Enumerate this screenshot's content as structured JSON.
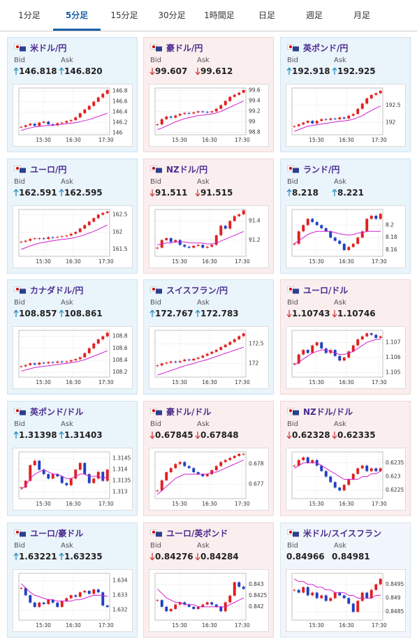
{
  "tabs": [
    "1分足",
    "5分足",
    "15分足",
    "30分足",
    "1時間足",
    "日足",
    "週足",
    "月足"
  ],
  "active_tab": 1,
  "cards": [
    {
      "title": "米ドル/円",
      "trend": "up",
      "bid_label": "Bid",
      "ask_label": "Ask",
      "bid": "146.818",
      "ask": "146.820",
      "chart": {
        "type": "candlestick",
        "xticklabels": [
          "15:30",
          "16:30",
          "17:30"
        ],
        "ylim": [
          145.97,
          146.86
        ],
        "yticks": [
          146,
          146.2,
          146.4,
          146.6,
          146.8
        ],
        "close": [
          146.12,
          146.15,
          146.18,
          146.14,
          146.2,
          146.22,
          146.17,
          146.15,
          146.19,
          146.2,
          146.23,
          146.25,
          146.3,
          146.38,
          146.45,
          146.52,
          146.6,
          146.68,
          146.75,
          146.82
        ],
        "ma": [
          146.05,
          146.08,
          146.1,
          146.12,
          146.13,
          146.14,
          146.15,
          146.15,
          146.16,
          146.17,
          146.18,
          146.19,
          146.2,
          146.22,
          146.24,
          146.26,
          146.29,
          146.32,
          146.35,
          146.38
        ]
      }
    },
    {
      "title": "豪ドル/円",
      "trend": "down",
      "bid_label": "Bid",
      "ask_label": "Ask",
      "bid": "99.607",
      "ask": "99.612",
      "chart": {
        "type": "candlestick",
        "xticklabels": [
          "15:30",
          "16:30",
          "17:30"
        ],
        "ylim": [
          98.75,
          99.65
        ],
        "yticks": [
          98.8,
          99,
          99.2,
          99.4,
          99.6
        ],
        "close": [
          98.95,
          99.05,
          99.1,
          99.08,
          99.12,
          99.15,
          99.17,
          99.16,
          99.18,
          99.2,
          99.19,
          99.18,
          99.2,
          99.25,
          99.32,
          99.4,
          99.48,
          99.52,
          99.56,
          99.61
        ],
        "ma": [
          98.85,
          98.88,
          98.92,
          98.96,
          99.0,
          99.03,
          99.06,
          99.08,
          99.1,
          99.12,
          99.13,
          99.14,
          99.15,
          99.17,
          99.2,
          99.24,
          99.28,
          99.32,
          99.36,
          99.4
        ]
      }
    },
    {
      "title": "英ポンド/円",
      "trend": "up",
      "bid_label": "Bid",
      "ask_label": "Ask",
      "bid": "192.918",
      "ask": "192.925",
      "chart": {
        "type": "candlestick",
        "xticklabels": [
          "15:30",
          "16:30",
          "17:30"
        ],
        "ylim": [
          191.65,
          193.0
        ],
        "yticks": [
          192,
          192.5
        ],
        "close": [
          191.9,
          191.95,
          192.0,
          192.05,
          191.98,
          192.05,
          192.1,
          192.08,
          192.12,
          192.1,
          192.15,
          192.12,
          192.2,
          192.25,
          192.4,
          192.55,
          192.7,
          192.8,
          192.85,
          192.92
        ],
        "ma": [
          191.75,
          191.8,
          191.85,
          191.9,
          191.92,
          191.94,
          191.96,
          191.98,
          192.0,
          192.02,
          192.04,
          192.05,
          192.07,
          192.1,
          192.15,
          192.2,
          192.28,
          192.35,
          192.42,
          192.48
        ]
      }
    },
    {
      "title": "ユーロ/円",
      "trend": "up",
      "bid_label": "Bid",
      "ask_label": "Ask",
      "bid": "162.591",
      "ask": "162.595",
      "chart": {
        "type": "candlestick",
        "xticklabels": [
          "15:30",
          "16:30",
          "17:30"
        ],
        "ylim": [
          161.3,
          162.65
        ],
        "yticks": [
          161.5,
          162,
          162.5
        ],
        "close": [
          161.72,
          161.75,
          161.8,
          161.82,
          161.82,
          161.8,
          161.85,
          161.84,
          161.86,
          161.88,
          161.9,
          161.95,
          162.0,
          162.1,
          162.2,
          162.3,
          162.4,
          162.5,
          162.55,
          162.59
        ],
        "ma": [
          161.5,
          161.55,
          161.6,
          161.64,
          161.68,
          161.7,
          161.73,
          161.75,
          161.77,
          161.79,
          161.8,
          161.82,
          161.85,
          161.88,
          161.92,
          161.97,
          162.02,
          162.08,
          162.14,
          162.2
        ]
      }
    },
    {
      "title": "NZドル/円",
      "trend": "down",
      "bid_label": "Bid",
      "ask_label": "Ask",
      "bid": "91.511",
      "ask": "91.515",
      "chart": {
        "type": "candlestick",
        "xticklabels": [
          "15:30",
          "16:30",
          "17:30"
        ],
        "ylim": [
          91.03,
          91.52
        ],
        "yticks": [
          91.2,
          91.4
        ],
        "close": [
          91.12,
          91.2,
          91.22,
          91.18,
          91.2,
          91.15,
          91.13,
          91.12,
          91.14,
          91.15,
          91.12,
          91.13,
          91.15,
          91.25,
          91.35,
          91.32,
          91.4,
          91.45,
          91.47,
          91.51
        ],
        "ma": [
          91.15,
          91.16,
          91.17,
          91.17,
          91.18,
          91.18,
          91.18,
          91.17,
          91.17,
          91.17,
          91.17,
          91.16,
          91.16,
          91.17,
          91.19,
          91.21,
          91.23,
          91.25,
          91.27,
          91.29
        ]
      }
    },
    {
      "title": "ランド/円",
      "trend": "up",
      "bid_label": "Bid",
      "ask_label": "Ask",
      "bid": "8.218",
      "ask": "8.221",
      "chart": {
        "type": "candlestick",
        "xticklabels": [
          "15:30",
          "16:30",
          "17:30"
        ],
        "ylim": [
          8.15,
          8.225
        ],
        "yticks": [
          8.16,
          8.18,
          8.2
        ],
        "close": [
          8.17,
          8.19,
          8.2,
          8.21,
          8.205,
          8.2,
          8.195,
          8.19,
          8.18,
          8.175,
          8.17,
          8.16,
          8.165,
          8.17,
          8.18,
          8.19,
          8.21,
          8.215,
          8.21,
          8.218
        ],
        "ma": [
          8.17,
          8.175,
          8.18,
          8.185,
          8.188,
          8.19,
          8.19,
          8.19,
          8.19,
          8.188,
          8.186,
          8.185,
          8.184,
          8.185,
          8.187,
          8.188,
          8.19,
          8.19,
          8.19,
          8.19
        ]
      }
    },
    {
      "title": "カナダドル/円",
      "trend": "up",
      "bid_label": "Bid",
      "ask_label": "Ask",
      "bid": "108.857",
      "ask": "108.861",
      "chart": {
        "type": "candlestick",
        "xticklabels": [
          "15:30",
          "16:30",
          "17:30"
        ],
        "ylim": [
          108.12,
          108.9
        ],
        "yticks": [
          108.2,
          108.4,
          108.6,
          108.8
        ],
        "close": [
          108.3,
          108.32,
          108.35,
          108.33,
          108.36,
          108.35,
          108.37,
          108.36,
          108.38,
          108.37,
          108.38,
          108.4,
          108.42,
          108.45,
          108.52,
          108.6,
          108.68,
          108.75,
          108.8,
          108.86
        ],
        "ma": [
          108.22,
          108.24,
          108.26,
          108.28,
          108.29,
          108.3,
          108.31,
          108.32,
          108.33,
          108.34,
          108.35,
          108.36,
          108.37,
          108.39,
          108.41,
          108.44,
          108.47,
          108.5,
          108.53,
          108.56
        ]
      }
    },
    {
      "title": "スイスフラン/円",
      "trend": "up",
      "bid_label": "Bid",
      "ask_label": "Ask",
      "bid": "172.767",
      "ask": "172.783",
      "chart": {
        "type": "candlestick",
        "xticklabels": [
          "15:30",
          "16:30",
          "17:30"
        ],
        "ylim": [
          171.65,
          172.85
        ],
        "yticks": [
          172,
          172.5
        ],
        "close": [
          171.95,
          172.0,
          172.02,
          172.05,
          172.03,
          172.06,
          172.1,
          172.08,
          172.12,
          172.15,
          172.2,
          172.25,
          172.3,
          172.35,
          172.42,
          172.48,
          172.55,
          172.62,
          172.7,
          172.77
        ],
        "ma": [
          171.7,
          171.74,
          171.78,
          171.82,
          171.86,
          171.9,
          171.94,
          171.97,
          172.0,
          172.04,
          172.07,
          172.1,
          172.14,
          172.18,
          172.22,
          172.26,
          172.3,
          172.34,
          172.38,
          172.42
        ]
      }
    },
    {
      "title": "ユーロ/ドル",
      "trend": "down",
      "bid_label": "Bid",
      "ask_label": "Ask",
      "bid": "1.10743",
      "ask": "1.10746",
      "chart": {
        "type": "candlestick",
        "xticklabels": [
          "15:30",
          "16:30",
          "17:30"
        ],
        "ylim": [
          1.1047,
          1.1078
        ],
        "yticks": [
          1.105,
          1.106,
          1.107
        ],
        "close": [
          1.1056,
          1.1062,
          1.1065,
          1.1063,
          1.1068,
          1.107,
          1.1066,
          1.1063,
          1.1065,
          1.1061,
          1.1058,
          1.106,
          1.1064,
          1.1068,
          1.1072,
          1.1074,
          1.1076,
          1.1075,
          1.1073,
          1.1074
        ],
        "ma": [
          1.1055,
          1.1057,
          1.1059,
          1.1061,
          1.1063,
          1.1064,
          1.1065,
          1.1065,
          1.1064,
          1.1063,
          1.1062,
          1.1062,
          1.1063,
          1.1064,
          1.1066,
          1.1068,
          1.107,
          1.1071,
          1.1072,
          1.1072
        ]
      }
    },
    {
      "title": "英ポンド/ドル",
      "trend": "up",
      "bid_label": "Bid",
      "ask_label": "Ask",
      "bid": "1.31398",
      "ask": "1.31403",
      "chart": {
        "type": "candlestick",
        "xticklabels": [
          "15:30",
          "16:30",
          "17:30"
        ],
        "ylim": [
          1.3127,
          1.3148
        ],
        "yticks": [
          1.313,
          1.3135,
          1.314,
          1.3145
        ],
        "close": [
          1.3132,
          1.3135,
          1.3142,
          1.3144,
          1.314,
          1.3138,
          1.3136,
          1.3138,
          1.3137,
          1.3134,
          1.3133,
          1.3136,
          1.314,
          1.3143,
          1.3138,
          1.3134,
          1.3136,
          1.3139,
          1.3135,
          1.314
        ],
        "ma": [
          1.3131,
          1.3133,
          1.3136,
          1.3138,
          1.3139,
          1.314,
          1.3139,
          1.3138,
          1.3138,
          1.3137,
          1.3136,
          1.3136,
          1.3137,
          1.3138,
          1.3138,
          1.3137,
          1.3137,
          1.3137,
          1.3136,
          1.3137
        ]
      }
    },
    {
      "title": "豪ドル/ドル",
      "trend": "down",
      "bid_label": "Bid",
      "ask_label": "Ask",
      "bid": "0.67845",
      "ask": "0.67848",
      "chart": {
        "type": "candlestick",
        "xticklabels": [
          "15:30",
          "16:30",
          "17:30"
        ],
        "ylim": [
          0.6763,
          0.6786
        ],
        "yticks": [
          0.677,
          0.678
        ],
        "close": [
          0.6767,
          0.6772,
          0.6776,
          0.6778,
          0.678,
          0.6781,
          0.6779,
          0.6778,
          0.6776,
          0.6775,
          0.6774,
          0.6775,
          0.6777,
          0.6779,
          0.6781,
          0.6782,
          0.6783,
          0.6784,
          0.6785,
          0.6785
        ],
        "ma": [
          0.6765,
          0.6767,
          0.6769,
          0.6771,
          0.6773,
          0.6774,
          0.6775,
          0.6775,
          0.6775,
          0.6775,
          0.6775,
          0.6775,
          0.6776,
          0.6776,
          0.6777,
          0.6778,
          0.6779,
          0.678,
          0.6781,
          0.6782
        ]
      }
    },
    {
      "title": "NZドル/ドル",
      "trend": "down",
      "bid_label": "Bid",
      "ask_label": "Ask",
      "bid": "0.62328",
      "ask": "0.62335",
      "chart": {
        "type": "candlestick",
        "xticklabels": [
          "15:30",
          "16:30",
          "17:30"
        ],
        "ylim": [
          0.6222,
          0.6239
        ],
        "yticks": [
          0.6225,
          0.623,
          0.6235
        ],
        "close": [
          0.6234,
          0.6236,
          0.6237,
          0.6235,
          0.6236,
          0.6234,
          0.6232,
          0.623,
          0.6228,
          0.6226,
          0.6225,
          0.6227,
          0.6229,
          0.6231,
          0.6233,
          0.6234,
          0.6232,
          0.6233,
          0.6232,
          0.6233
        ],
        "ma": [
          0.6233,
          0.6234,
          0.6235,
          0.6235,
          0.6235,
          0.6235,
          0.6234,
          0.6233,
          0.6232,
          0.6231,
          0.623,
          0.6229,
          0.6229,
          0.6229,
          0.6229,
          0.623,
          0.623,
          0.6231,
          0.6231,
          0.6232
        ]
      }
    },
    {
      "title": "ユーロ/豪ドル",
      "trend": "up",
      "bid_label": "Bid",
      "ask_label": "Ask",
      "bid": "1.63221",
      "ask": "1.63235",
      "chart": {
        "type": "candlestick",
        "xticklabels": [
          "15:30",
          "16:30",
          "17:30"
        ],
        "ylim": [
          1.6313,
          1.6345
        ],
        "yticks": [
          1.632,
          1.633,
          1.634
        ],
        "close": [
          1.6335,
          1.633,
          1.6325,
          1.6322,
          1.6325,
          1.6324,
          1.6327,
          1.6325,
          1.6322,
          1.6326,
          1.6328,
          1.633,
          1.6329,
          1.6332,
          1.6333,
          1.6331,
          1.6334,
          1.6332,
          1.6323,
          1.6322
        ],
        "ma": [
          1.6338,
          1.6335,
          1.6332,
          1.633,
          1.6329,
          1.6328,
          1.6327,
          1.6327,
          1.6326,
          1.6326,
          1.6326,
          1.6326,
          1.6327,
          1.6327,
          1.6328,
          1.6329,
          1.633,
          1.633,
          1.633,
          1.6329
        ]
      }
    },
    {
      "title": "ユーロ/英ポンド",
      "trend": "down",
      "bid_label": "Bid",
      "ask_label": "Ask",
      "bid": "0.84276",
      "ask": "0.84284",
      "chart": {
        "type": "candlestick",
        "xticklabels": [
          "15:30",
          "16:30",
          "17:30"
        ],
        "ylim": [
          0.8414,
          0.8435
        ],
        "yticks": [
          0.842,
          0.8425,
          0.843
        ],
        "close": [
          0.8423,
          0.842,
          0.8418,
          0.8419,
          0.8421,
          0.8422,
          0.8421,
          0.842,
          0.8419,
          0.842,
          0.8421,
          0.8422,
          0.8421,
          0.842,
          0.8418,
          0.8422,
          0.8425,
          0.8431,
          0.8429,
          0.8428
        ],
        "ma": [
          0.8428,
          0.8426,
          0.8424,
          0.8423,
          0.8422,
          0.8422,
          0.8421,
          0.8421,
          0.8421,
          0.842,
          0.842,
          0.842,
          0.842,
          0.842,
          0.842,
          0.842,
          0.8421,
          0.8422,
          0.8423,
          0.8424
        ]
      }
    },
    {
      "title": "米ドル/スイスフラン",
      "trend": "flat",
      "bid_label": "Bid",
      "ask_label": "Ask",
      "bid": "0.84966",
      "ask": "0.84981",
      "chart": {
        "type": "candlestick",
        "xticklabels": [
          "15:30",
          "16:30",
          "17:30"
        ],
        "ylim": [
          0.8482,
          0.8499
        ],
        "yticks": [
          0.8485,
          0.849,
          0.8495
        ],
        "close": [
          0.8493,
          0.8492,
          0.8494,
          0.8491,
          0.8492,
          0.849,
          0.8491,
          0.8489,
          0.849,
          0.8492,
          0.8491,
          0.849,
          0.8488,
          0.8485,
          0.8489,
          0.8492,
          0.849,
          0.8493,
          0.8495,
          0.8497
        ],
        "ma": [
          0.8497,
          0.8496,
          0.8496,
          0.8495,
          0.8495,
          0.8494,
          0.8494,
          0.8493,
          0.8493,
          0.8492,
          0.8492,
          0.8492,
          0.8491,
          0.8491,
          0.849,
          0.849,
          0.849,
          0.849,
          0.8491,
          0.8491
        ]
      }
    }
  ]
}
